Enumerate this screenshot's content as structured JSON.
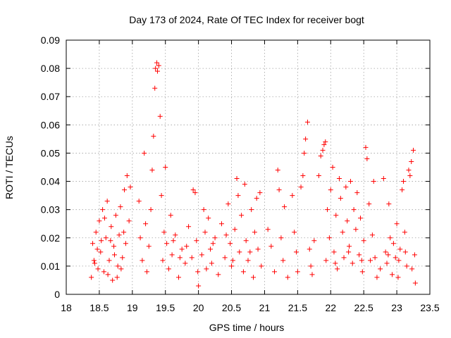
{
  "chart_data": {
    "type": "scatter",
    "title": "Day 173 of 2024, Rate Of TEC Index for receiver bogt",
    "xlabel": "GPS time / hours",
    "ylabel": "ROTI / TECUs",
    "xlim": [
      18,
      23.5
    ],
    "ylim": [
      0,
      0.09
    ],
    "xticks": [
      18,
      18.5,
      19,
      19.5,
      20,
      20.5,
      21,
      21.5,
      22,
      22.5,
      23,
      23.5
    ],
    "xtick_labels": [
      "18",
      "18.5",
      "19",
      "19.5",
      "20",
      "20.5",
      "21",
      "21.5",
      "22",
      "22.5",
      "23",
      "23.5"
    ],
    "yticks": [
      0,
      0.01,
      0.02,
      0.03,
      0.04,
      0.05,
      0.06,
      0.07,
      0.08,
      0.09
    ],
    "ytick_labels": [
      "0",
      "0.01",
      "0.02",
      "0.03",
      "0.04",
      "0.05",
      "0.06",
      "0.07",
      "0.08",
      "0.09"
    ],
    "grid": true,
    "marker": "+",
    "color": "#ff0000",
    "series": [
      {
        "name": "ROTI",
        "points": [
          [
            18.38,
            0.006
          ],
          [
            18.4,
            0.018
          ],
          [
            18.42,
            0.012
          ],
          [
            18.45,
            0.022
          ],
          [
            18.48,
            0.009
          ],
          [
            18.5,
            0.026
          ],
          [
            18.52,
            0.015
          ],
          [
            18.55,
            0.03
          ],
          [
            18.57,
            0.008
          ],
          [
            18.6,
            0.02
          ],
          [
            18.62,
            0.033
          ],
          [
            18.65,
            0.012
          ],
          [
            18.68,
            0.024
          ],
          [
            18.7,
            0.005
          ],
          [
            18.72,
            0.017
          ],
          [
            18.75,
            0.028
          ],
          [
            18.78,
            0.01
          ],
          [
            18.8,
            0.021
          ],
          [
            18.82,
            0.031
          ],
          [
            18.85,
            0.013
          ],
          [
            18.88,
            0.037
          ],
          [
            18.9,
            0.018
          ],
          [
            18.92,
            0.042
          ],
          [
            18.95,
            0.026
          ],
          [
            18.97,
            0.038
          ],
          [
            18.43,
            0.011
          ],
          [
            18.53,
            0.019
          ],
          [
            18.63,
            0.007
          ],
          [
            18.73,
            0.014
          ],
          [
            18.83,
            0.009
          ],
          [
            19.1,
            0.033
          ],
          [
            19.12,
            0.02
          ],
          [
            19.15,
            0.012
          ],
          [
            19.18,
            0.05
          ],
          [
            19.2,
            0.025
          ],
          [
            19.22,
            0.008
          ],
          [
            19.25,
            0.017
          ],
          [
            19.28,
            0.03
          ],
          [
            19.3,
            0.044
          ],
          [
            19.32,
            0.056
          ],
          [
            19.34,
            0.073
          ],
          [
            19.35,
            0.08
          ],
          [
            19.37,
            0.082
          ],
          [
            19.38,
            0.079
          ],
          [
            19.4,
            0.081
          ],
          [
            19.42,
            0.063
          ],
          [
            19.44,
            0.035
          ],
          [
            19.46,
            0.012
          ],
          [
            19.48,
            0.022
          ],
          [
            19.5,
            0.045
          ],
          [
            19.52,
            0.018
          ],
          [
            19.55,
            0.009
          ],
          [
            19.58,
            0.028
          ],
          [
            19.6,
            0.014
          ],
          [
            19.65,
            0.021
          ],
          [
            19.7,
            0.006
          ],
          [
            19.75,
            0.016
          ],
          [
            19.8,
            0.011
          ],
          [
            19.85,
            0.024
          ],
          [
            19.9,
            0.013
          ],
          [
            19.92,
            0.037
          ],
          [
            19.95,
            0.036
          ],
          [
            19.97,
            0.019
          ],
          [
            19.99,
            0.008
          ],
          [
            20.0,
            0.003
          ],
          [
            20.05,
            0.014
          ],
          [
            20.08,
            0.03
          ],
          [
            20.1,
            0.022
          ],
          [
            20.12,
            0.009
          ],
          [
            20.15,
            0.027
          ],
          [
            20.18,
            0.016
          ],
          [
            20.2,
            0.011
          ],
          [
            20.25,
            0.02
          ],
          [
            20.3,
            0.007
          ],
          [
            20.35,
            0.025
          ],
          [
            20.4,
            0.013
          ],
          [
            20.45,
            0.032
          ],
          [
            20.48,
            0.018
          ],
          [
            20.5,
            0.01
          ],
          [
            20.55,
            0.023
          ],
          [
            20.58,
            0.041
          ],
          [
            20.6,
            0.035
          ],
          [
            20.62,
            0.015
          ],
          [
            20.65,
            0.028
          ],
          [
            20.68,
            0.008
          ],
          [
            20.7,
            0.039
          ],
          [
            20.72,
            0.019
          ],
          [
            20.75,
            0.012
          ],
          [
            20.8,
            0.03
          ],
          [
            20.83,
            0.006
          ],
          [
            20.85,
            0.022
          ],
          [
            20.88,
            0.034
          ],
          [
            20.9,
            0.016
          ],
          [
            20.93,
            0.036
          ],
          [
            20.95,
            0.01
          ],
          [
            21.05,
            0.023
          ],
          [
            21.1,
            0.017
          ],
          [
            21.15,
            0.008
          ],
          [
            21.2,
            0.044
          ],
          [
            21.22,
            0.037
          ],
          [
            21.25,
            0.02
          ],
          [
            21.28,
            0.012
          ],
          [
            21.3,
            0.031
          ],
          [
            21.35,
            0.006
          ],
          [
            21.42,
            0.035
          ],
          [
            21.45,
            0.022
          ],
          [
            21.48,
            0.015
          ],
          [
            21.5,
            0.008
          ],
          [
            21.55,
            0.038
          ],
          [
            21.58,
            0.042
          ],
          [
            21.6,
            0.05
          ],
          [
            21.62,
            0.055
          ],
          [
            21.65,
            0.061
          ],
          [
            21.68,
            0.016
          ],
          [
            21.7,
            0.01
          ],
          [
            21.72,
            0.007
          ],
          [
            21.75,
            0.019
          ],
          [
            21.82,
            0.042
          ],
          [
            21.85,
            0.049
          ],
          [
            21.88,
            0.051
          ],
          [
            21.9,
            0.053
          ],
          [
            21.92,
            0.054
          ],
          [
            21.93,
            0.012
          ],
          [
            21.95,
            0.03
          ],
          [
            21.98,
            0.02
          ],
          [
            22.0,
            0.037
          ],
          [
            22.03,
            0.045
          ],
          [
            22.05,
            0.015
          ],
          [
            22.08,
            0.028
          ],
          [
            22.1,
            0.009
          ],
          [
            22.13,
            0.041
          ],
          [
            22.15,
            0.034
          ],
          [
            22.18,
            0.022
          ],
          [
            22.2,
            0.013
          ],
          [
            22.23,
            0.038
          ],
          [
            22.25,
            0.026
          ],
          [
            22.28,
            0.017
          ],
          [
            22.3,
            0.04
          ],
          [
            22.33,
            0.011
          ],
          [
            22.35,
            0.03
          ],
          [
            22.38,
            0.023
          ],
          [
            22.4,
            0.036
          ],
          [
            22.43,
            0.014
          ],
          [
            22.45,
            0.027
          ],
          [
            22.48,
            0.008
          ],
          [
            22.5,
            0.019
          ],
          [
            22.53,
            0.052
          ],
          [
            22.55,
            0.048
          ],
          [
            22.58,
            0.032
          ],
          [
            22.6,
            0.012
          ],
          [
            22.63,
            0.021
          ],
          [
            22.65,
            0.04
          ],
          [
            22.7,
            0.006
          ],
          [
            22.75,
            0.009
          ],
          [
            22.8,
            0.041
          ],
          [
            22.83,
            0.015
          ],
          [
            22.85,
            0.011
          ],
          [
            22.88,
            0.032
          ],
          [
            22.9,
            0.02
          ],
          [
            22.93,
            0.007
          ],
          [
            22.95,
            0.018
          ],
          [
            22.98,
            0.013
          ],
          [
            23.0,
            0.025
          ],
          [
            23.02,
            0.006
          ],
          [
            23.05,
            0.016
          ],
          [
            23.08,
            0.037
          ],
          [
            23.1,
            0.04
          ],
          [
            23.12,
            0.022
          ],
          [
            23.15,
            0.01
          ],
          [
            23.18,
            0.044
          ],
          [
            23.2,
            0.042
          ],
          [
            23.22,
            0.047
          ],
          [
            23.25,
            0.051
          ],
          [
            23.27,
            0.014
          ],
          [
            23.28,
            0.004
          ],
          [
            18.47,
            0.016
          ],
          [
            18.58,
            0.027
          ],
          [
            18.67,
            0.019
          ],
          [
            18.77,
            0.006
          ],
          [
            18.87,
            0.022
          ],
          [
            19.62,
            0.019
          ],
          [
            19.72,
            0.013
          ],
          [
            19.82,
            0.017
          ],
          [
            20.22,
            0.018
          ],
          [
            20.42,
            0.021
          ],
          [
            20.52,
            0.012
          ],
          [
            20.78,
            0.015
          ],
          [
            22.07,
            0.011
          ],
          [
            22.27,
            0.015
          ],
          [
            22.47,
            0.012
          ],
          [
            22.67,
            0.013
          ],
          [
            22.87,
            0.014
          ],
          [
            23.03,
            0.012
          ],
          [
            23.13,
            0.015
          ],
          [
            23.23,
            0.009
          ]
        ]
      }
    ]
  }
}
